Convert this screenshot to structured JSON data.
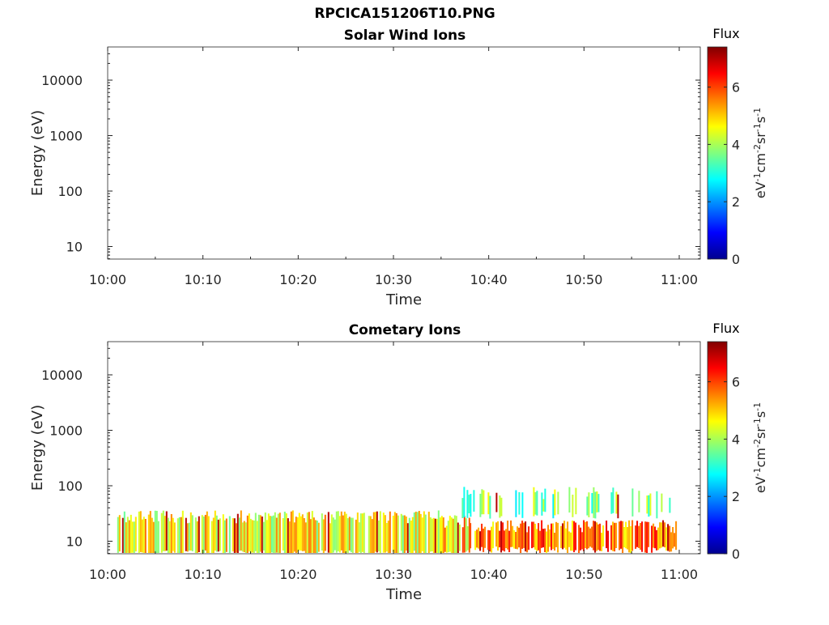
{
  "figure": {
    "title": "RPCICA151206T10.PNG"
  },
  "colors": {
    "axis": "#262626",
    "colormap": "jet"
  },
  "chart_data": [
    {
      "type": "heatmap",
      "title": "Solar Wind Ions",
      "xlabel": "Time",
      "ylabel": "Energy (eV)",
      "x_ticks": [
        "10:00",
        "10:10",
        "10:20",
        "10:30",
        "10:40",
        "10:50",
        "11:00"
      ],
      "y_ticks": [
        "10",
        "100",
        "1000",
        "10000"
      ],
      "y_scale": "log",
      "colorbar": {
        "label": "Flux",
        "unit": "eV-1cm-2sr-1s-1",
        "ticks": [
          "0",
          "2",
          "4",
          "6"
        ],
        "range": [
          0,
          7.4
        ]
      },
      "data": "empty"
    },
    {
      "type": "heatmap",
      "title": "Cometary Ions",
      "xlabel": "Time",
      "ylabel": "Energy (eV)",
      "x_ticks": [
        "10:00",
        "10:10",
        "10:20",
        "10:30",
        "10:40",
        "10:50",
        "11:00"
      ],
      "y_ticks": [
        "10",
        "100",
        "1000",
        "10000"
      ],
      "y_scale": "log",
      "colorbar": {
        "label": "Flux",
        "unit": "eV-1cm-2sr-1s-1",
        "ticks": [
          "0",
          "2",
          "4",
          "6"
        ],
        "range": [
          0,
          7.4
        ]
      },
      "data": {
        "time_start": "10:01",
        "time_end": "11:00",
        "bands": [
          {
            "t0": "10:01",
            "t1": "10:35",
            "e_low": 6,
            "e_high": 30,
            "flux": 4.6
          },
          {
            "t0": "10:35",
            "t1": "10:38",
            "e_low": 6,
            "e_high": 25,
            "flux": 5.0
          },
          {
            "t0": "10:38",
            "t1": "11:00",
            "e_low": 7,
            "e_high": 20,
            "flux": 5.6
          },
          {
            "t0": "10:37",
            "t1": "10:59",
            "e_low": 30,
            "e_high": 80,
            "flux": 3.6
          }
        ],
        "peak_flux": 7.0
      }
    }
  ]
}
